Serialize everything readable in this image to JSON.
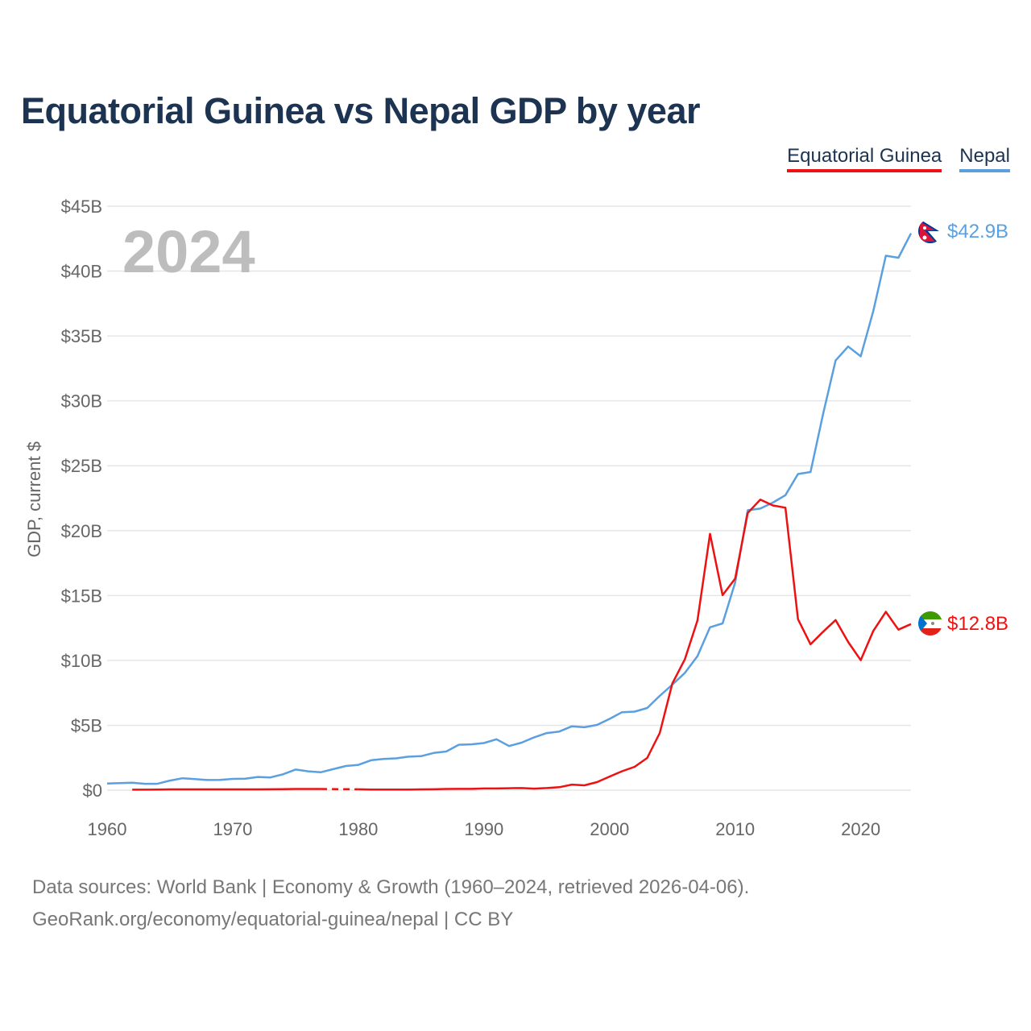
{
  "title": "Equatorial Guinea vs Nepal GDP by year",
  "legend": [
    {
      "label": "Equatorial Guinea",
      "color": "#ee1111"
    },
    {
      "label": "Nepal",
      "color": "#5aa0e0"
    }
  ],
  "footer": {
    "line1": "Data sources: World Bank | Economy & Growth (1960–2024, retrieved 2026-04-06).",
    "line2": "GeoRank.org/economy/equatorial-guinea/nepal | CC BY"
  },
  "chart_data": {
    "type": "line",
    "title": "Equatorial Guinea vs Nepal GDP by year",
    "year_label": "2024",
    "ylabel": "GDP, current $",
    "xlabel": "",
    "xlim": [
      1960,
      2024
    ],
    "ylim": [
      0,
      45
    ],
    "x_ticks": [
      1960,
      1970,
      1980,
      1990,
      2000,
      2010,
      2020
    ],
    "y_ticks": [
      {
        "value": 0,
        "label": "$0"
      },
      {
        "value": 5,
        "label": "$5B"
      },
      {
        "value": 10,
        "label": "$10B"
      },
      {
        "value": 15,
        "label": "$15B"
      },
      {
        "value": 20,
        "label": "$20B"
      },
      {
        "value": 25,
        "label": "$25B"
      },
      {
        "value": 30,
        "label": "$30B"
      },
      {
        "value": 35,
        "label": "$35B"
      },
      {
        "value": 40,
        "label": "$40B"
      },
      {
        "value": 45,
        "label": "$45B"
      }
    ],
    "units": "billions USD",
    "series": [
      {
        "name": "Nepal",
        "color": "#5aa0e0",
        "end_label": "$42.9B",
        "x": [
          1960,
          1961,
          1962,
          1963,
          1964,
          1965,
          1966,
          1967,
          1968,
          1969,
          1970,
          1971,
          1972,
          1973,
          1974,
          1975,
          1976,
          1977,
          1978,
          1979,
          1980,
          1981,
          1982,
          1983,
          1984,
          1985,
          1986,
          1987,
          1988,
          1989,
          1990,
          1991,
          1992,
          1993,
          1994,
          1995,
          1996,
          1997,
          1998,
          1999,
          2000,
          2001,
          2002,
          2003,
          2004,
          2005,
          2006,
          2007,
          2008,
          2009,
          2010,
          2011,
          2012,
          2013,
          2014,
          2015,
          2016,
          2017,
          2018,
          2019,
          2020,
          2021,
          2022,
          2023,
          2024
        ],
        "values": [
          0.51,
          0.54,
          0.58,
          0.49,
          0.49,
          0.74,
          0.92,
          0.85,
          0.78,
          0.79,
          0.87,
          0.88,
          1.02,
          0.98,
          1.22,
          1.59,
          1.45,
          1.38,
          1.62,
          1.86,
          1.95,
          2.3,
          2.4,
          2.45,
          2.58,
          2.62,
          2.87,
          2.98,
          3.5,
          3.53,
          3.63,
          3.92,
          3.4,
          3.66,
          4.07,
          4.4,
          4.52,
          4.92,
          4.85,
          5.03,
          5.49,
          6.01,
          6.05,
          6.33,
          7.27,
          8.13,
          9.04,
          10.33,
          12.55,
          12.85,
          16.0,
          21.57,
          21.7,
          22.16,
          22.73,
          24.36,
          24.52,
          28.97,
          33.11,
          34.19,
          33.43,
          36.92,
          41.18,
          41.03,
          42.91
        ]
      },
      {
        "name": "Equatorial Guinea",
        "color": "#ee1111",
        "end_label": "$12.8B",
        "x": [
          1962,
          1963,
          1964,
          1965,
          1966,
          1967,
          1968,
          1969,
          1970,
          1971,
          1972,
          1973,
          1974,
          1975,
          1976,
          1977,
          1978,
          1979,
          1980,
          1981,
          1982,
          1983,
          1984,
          1985,
          1986,
          1987,
          1988,
          1989,
          1990,
          1991,
          1992,
          1993,
          1994,
          1995,
          1996,
          1997,
          1998,
          1999,
          2000,
          2001,
          2002,
          2003,
          2004,
          2005,
          2006,
          2007,
          2008,
          2009,
          2010,
          2011,
          2012,
          2013,
          2014,
          2015,
          2016,
          2017,
          2018,
          2019,
          2020,
          2021,
          2022,
          2023,
          2024
        ],
        "values": [
          0.04,
          0.04,
          0.05,
          0.06,
          0.06,
          0.06,
          0.06,
          0.06,
          0.06,
          0.06,
          0.06,
          0.07,
          0.08,
          0.09,
          0.09,
          0.09,
          null,
          null,
          0.07,
          0.05,
          0.05,
          0.05,
          0.05,
          0.06,
          0.07,
          0.09,
          0.1,
          0.1,
          0.13,
          0.13,
          0.15,
          0.16,
          0.12,
          0.16,
          0.23,
          0.43,
          0.37,
          0.62,
          1.05,
          1.46,
          1.8,
          2.48,
          4.41,
          8.22,
          10.09,
          13.07,
          19.75,
          15.03,
          16.3,
          21.36,
          22.39,
          21.94,
          21.77,
          13.18,
          11.24,
          12.2,
          13.11,
          11.42,
          10.02,
          12.27,
          13.74,
          12.37,
          12.8
        ]
      }
    ]
  }
}
